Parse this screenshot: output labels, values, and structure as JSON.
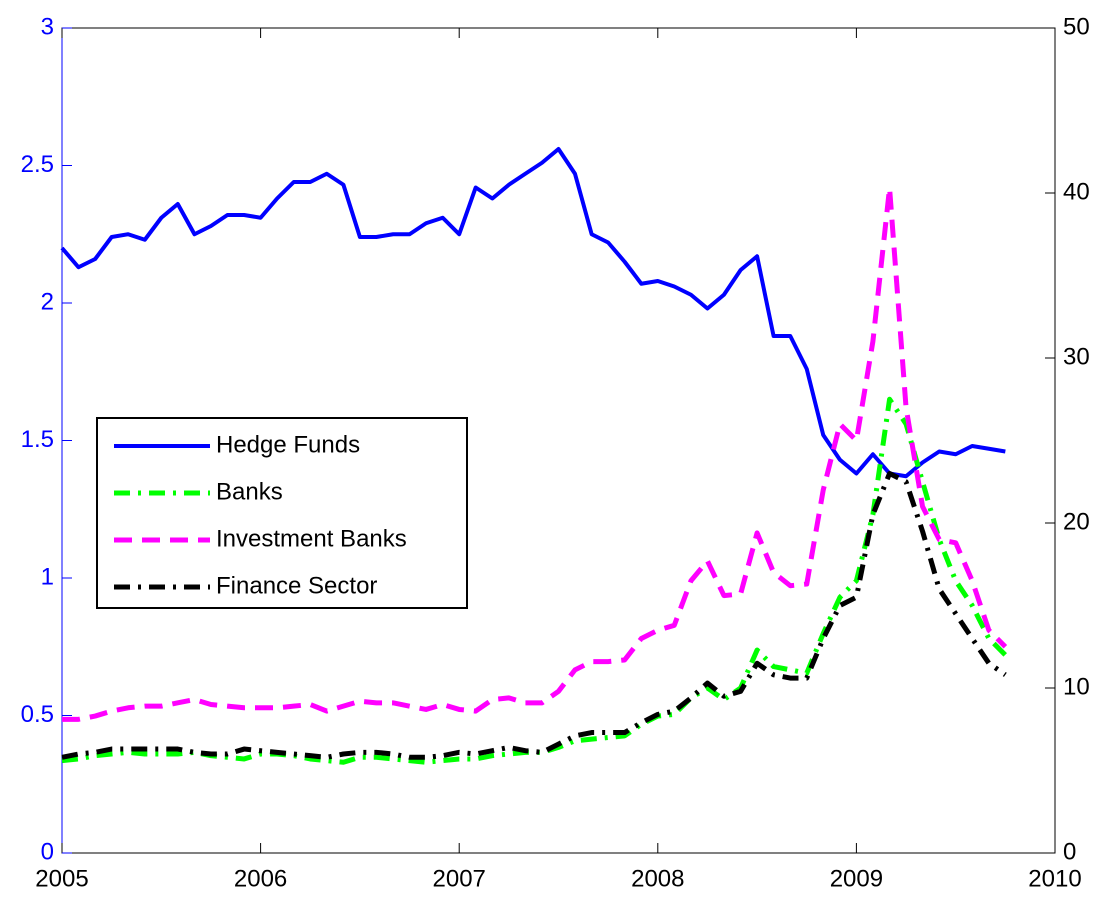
{
  "chart_data": {
    "type": "line",
    "x": [
      2005,
      2005.083,
      2005.167,
      2005.25,
      2005.333,
      2005.417,
      2005.5,
      2005.583,
      2005.667,
      2005.75,
      2005.833,
      2005.917,
      2006,
      2006.083,
      2006.167,
      2006.25,
      2006.333,
      2006.417,
      2006.5,
      2006.583,
      2006.667,
      2006.75,
      2006.833,
      2006.917,
      2007,
      2007.083,
      2007.167,
      2007.25,
      2007.333,
      2007.417,
      2007.5,
      2007.583,
      2007.667,
      2007.75,
      2007.833,
      2007.917,
      2008,
      2008.083,
      2008.167,
      2008.25,
      2008.333,
      2008.417,
      2008.5,
      2008.583,
      2008.667,
      2008.75,
      2008.833,
      2008.917,
      2009,
      2009.083,
      2009.167,
      2009.25,
      2009.333,
      2009.417,
      2009.5,
      2009.583,
      2009.667,
      2009.75
    ],
    "series": [
      {
        "name": "Hedge Funds",
        "color": "#0000ff",
        "style": "solid",
        "axis": "y",
        "values": [
          2.2,
          2.13,
          2.16,
          2.24,
          2.25,
          2.23,
          2.31,
          2.36,
          2.25,
          2.28,
          2.32,
          2.32,
          2.31,
          2.38,
          2.44,
          2.44,
          2.47,
          2.43,
          2.24,
          2.24,
          2.25,
          2.25,
          2.29,
          2.31,
          2.25,
          2.42,
          2.38,
          2.43,
          2.47,
          2.51,
          2.56,
          2.47,
          2.25,
          2.22,
          2.15,
          2.07,
          2.08,
          2.06,
          2.03,
          1.98,
          2.03,
          2.12,
          2.17,
          1.88,
          1.88,
          1.76,
          1.52,
          1.43,
          1.38,
          1.45,
          1.38,
          1.37,
          1.42,
          1.46,
          1.45,
          1.48,
          1.47,
          1.46
        ]
      },
      {
        "name": "Banks",
        "color": "#00ff00",
        "style": "dashdot",
        "axis": "y2",
        "values": [
          5.6,
          5.7,
          5.9,
          6.0,
          6.1,
          6.0,
          6.0,
          6.0,
          6.1,
          5.9,
          5.8,
          5.7,
          6.0,
          6.0,
          5.9,
          5.7,
          5.6,
          5.5,
          5.8,
          5.8,
          5.7,
          5.6,
          5.5,
          5.6,
          5.7,
          5.7,
          5.9,
          6.0,
          6.1,
          6.1,
          6.4,
          6.8,
          6.9,
          7.0,
          7.1,
          7.8,
          8.3,
          8.4,
          9.4,
          10.0,
          9.3,
          10.0,
          12.3,
          11.3,
          11.1,
          10.9,
          13.3,
          15.5,
          16.5,
          20.5,
          27.5,
          26.0,
          22.5,
          19.0,
          16.5,
          15.0,
          13.0,
          12.0
        ]
      },
      {
        "name": "Investment Banks",
        "color": "#ff00ff",
        "style": "dashed",
        "axis": "y2",
        "values": [
          8.1,
          8.1,
          8.3,
          8.6,
          8.8,
          8.9,
          8.9,
          9.1,
          9.3,
          9.0,
          8.9,
          8.8,
          8.8,
          8.8,
          8.9,
          9.0,
          8.6,
          8.9,
          9.2,
          9.1,
          9.1,
          8.9,
          8.7,
          9.0,
          8.7,
          8.6,
          9.3,
          9.4,
          9.1,
          9.1,
          9.8,
          11.1,
          11.6,
          11.6,
          11.7,
          13.0,
          13.5,
          13.8,
          16.5,
          17.7,
          15.6,
          15.7,
          19.4,
          17,
          16.2,
          16.3,
          22,
          26,
          25,
          31,
          40.3,
          27,
          21,
          19,
          18.8,
          16.5,
          13.5,
          12.5
        ]
      },
      {
        "name": "Finance Sector",
        "color": "#000000",
        "style": "dashdot",
        "axis": "y2",
        "values": [
          5.8,
          6.0,
          6.1,
          6.3,
          6.3,
          6.3,
          6.3,
          6.3,
          6.1,
          6.0,
          6.0,
          6.3,
          6.2,
          6.1,
          6.0,
          5.9,
          5.8,
          6.0,
          6.1,
          6.1,
          6.0,
          5.8,
          5.8,
          5.9,
          6.1,
          6.0,
          6.2,
          6.4,
          6.2,
          6.1,
          6.6,
          7.1,
          7.3,
          7.3,
          7.3,
          7.9,
          8.4,
          8.6,
          9.4,
          10.3,
          9.5,
          9.8,
          11.5,
          10.8,
          10.6,
          10.6,
          13.0,
          15.0,
          15.5,
          20.5,
          23.0,
          22.5,
          19.5,
          16.0,
          14.5,
          13.0,
          11.5,
          10.8
        ]
      }
    ],
    "xlim": [
      2005,
      2010
    ],
    "xticks": [
      2005,
      2006,
      2007,
      2008,
      2009,
      2010
    ],
    "ylim": [
      0,
      3
    ],
    "yticks": [
      0,
      0.5,
      1,
      1.5,
      2,
      2.5,
      3
    ],
    "ycolor": "#0000ff",
    "y2lim": [
      0,
      50
    ],
    "y2ticks": [
      0,
      10,
      20,
      30,
      40,
      50
    ],
    "legend": "left",
    "grid": false
  }
}
